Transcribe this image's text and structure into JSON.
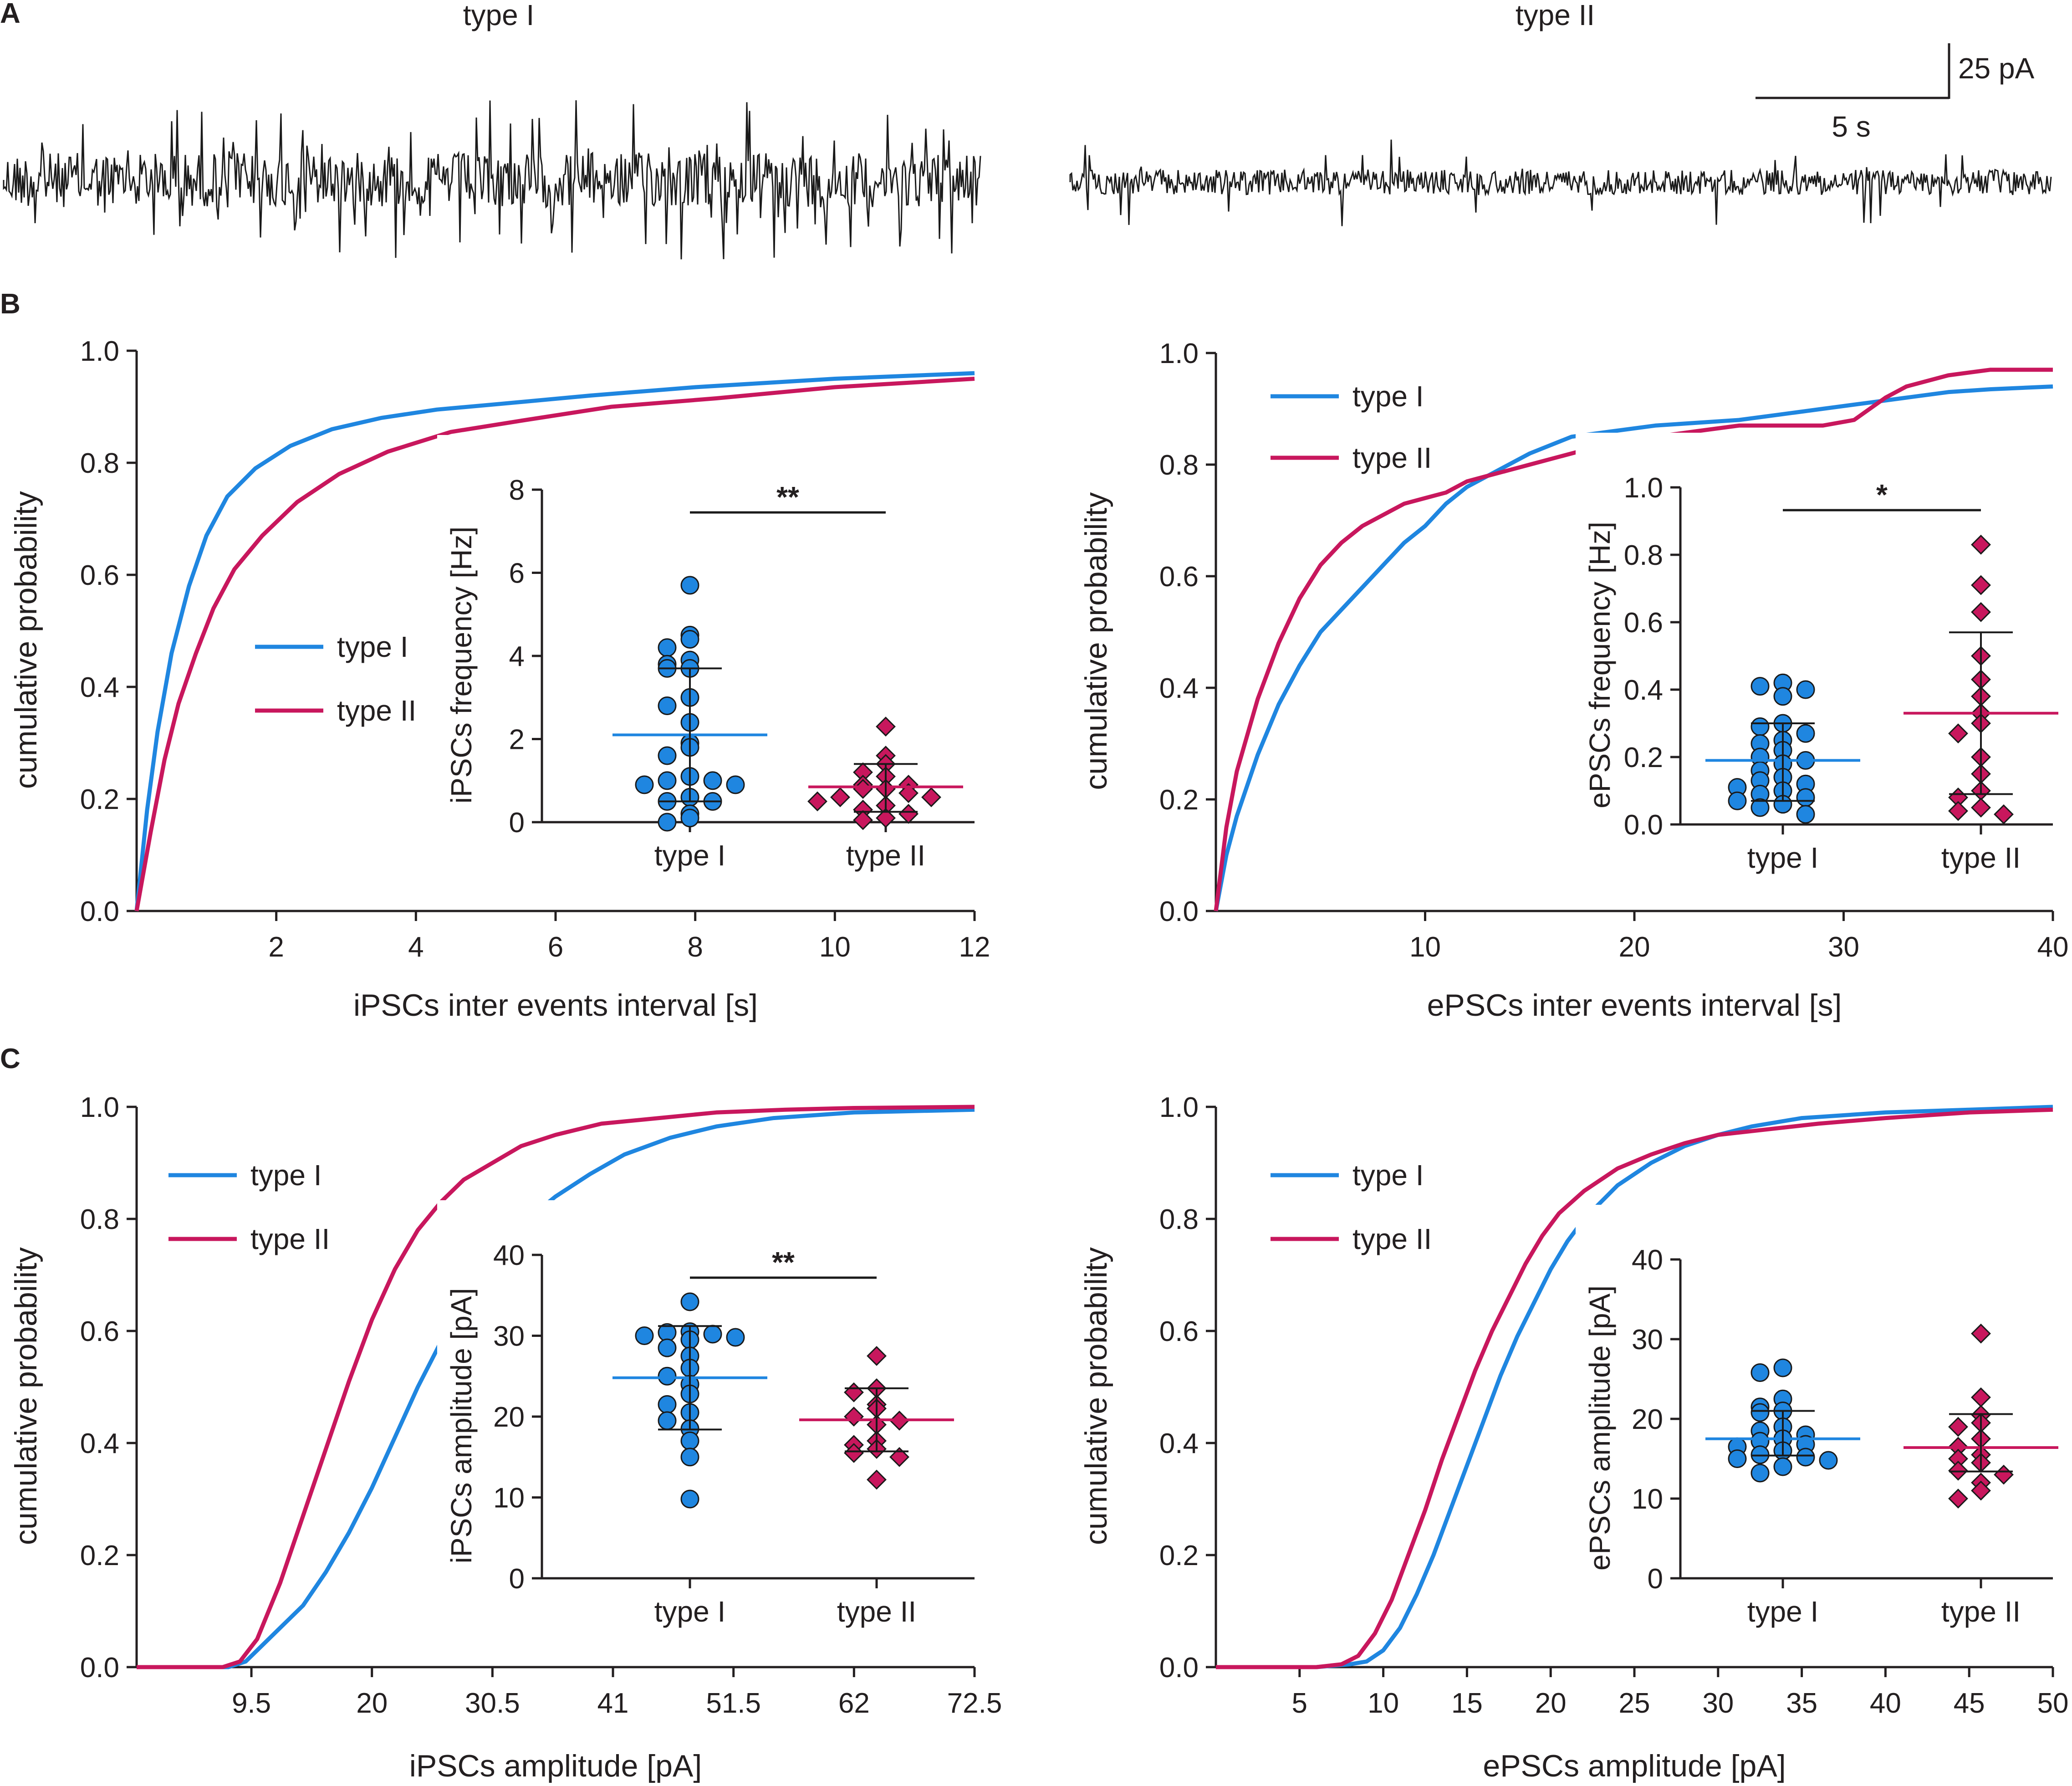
{
  "colors": {
    "type_I": "#1f86e0",
    "type_II": "#c8175d",
    "axis": "#231f20",
    "trace": "#1a1a1a"
  },
  "figure": {
    "panel_labels": [
      "A",
      "B",
      "C"
    ]
  },
  "traces": {
    "type_I_label": "type I",
    "type_II_label": "type II",
    "scale_current": "25 pA",
    "scale_time": "5 s"
  },
  "chart_data": [
    {
      "id": "B-left",
      "type": "line",
      "title": "",
      "xlabel": "iPSCs inter events interval [s]",
      "ylabel": "cumulative probability",
      "xlim": [
        0,
        12
      ],
      "ylim": [
        0,
        1
      ],
      "xticks": [
        2,
        4,
        6,
        8,
        10,
        12
      ],
      "xtick_labels": [
        "2",
        "4",
        "6",
        "8",
        "10",
        "12"
      ],
      "yticks": [
        0,
        0.2,
        0.4,
        0.6,
        0.8,
        1.0
      ],
      "ytick_labels": [
        "0.0",
        "0.2",
        "0.4",
        "0.6",
        "0.8",
        "1.0"
      ],
      "legend": [
        "type I",
        "type II"
      ],
      "series": [
        {
          "name": "type I",
          "x": [
            0,
            0.15,
            0.3,
            0.5,
            0.75,
            1.0,
            1.3,
            1.7,
            2.2,
            2.8,
            3.5,
            4.3,
            5.2,
            6.5,
            8,
            10,
            12
          ],
          "y": [
            0,
            0.18,
            0.32,
            0.46,
            0.58,
            0.67,
            0.74,
            0.79,
            0.83,
            0.86,
            0.88,
            0.895,
            0.905,
            0.92,
            0.935,
            0.95,
            0.96
          ]
        },
        {
          "name": "type II",
          "x": [
            0,
            0.2,
            0.4,
            0.6,
            0.85,
            1.1,
            1.4,
            1.8,
            2.3,
            2.9,
            3.6,
            4.5,
            5.5,
            6.8,
            8.3,
            10,
            12
          ],
          "y": [
            0,
            0.14,
            0.27,
            0.37,
            0.46,
            0.54,
            0.61,
            0.67,
            0.73,
            0.78,
            0.82,
            0.855,
            0.875,
            0.9,
            0.915,
            0.935,
            0.95
          ]
        }
      ],
      "inset": {
        "ylabel": "iPSCs frequency [Hz]",
        "ylim": [
          0,
          8
        ],
        "yticks": [
          0,
          2,
          4,
          6,
          8
        ],
        "ytick_labels": [
          "0",
          "2",
          "4",
          "6",
          "8"
        ],
        "categories": [
          "type I",
          "type II"
        ],
        "significance": "**",
        "groups": [
          {
            "name": "type I",
            "mean": 2.1,
            "sd_low": 0.5,
            "sd_high": 3.7,
            "points": [
              5.7,
              4.5,
              4.4,
              4.2,
              3.9,
              3.8,
              3.7,
              3.7,
              3.0,
              2.8,
              2.4,
              1.9,
              1.8,
              1.6,
              1.1,
              1.0,
              1.0,
              0.9,
              0.9,
              0.6,
              0.5,
              0.5,
              0.2,
              0.1,
              0.0
            ]
          },
          {
            "name": "type II",
            "mean": 0.85,
            "sd_low": 0.25,
            "sd_high": 1.4,
            "points": [
              2.3,
              1.6,
              1.4,
              1.2,
              1.1,
              0.9,
              0.9,
              0.8,
              0.8,
              0.7,
              0.6,
              0.6,
              0.5,
              0.4,
              0.3,
              0.2,
              0.1,
              0.05
            ]
          }
        ]
      }
    },
    {
      "id": "B-right",
      "type": "line",
      "xlabel": "ePSCs inter events interval [s]",
      "ylabel": "cumulative probability",
      "xlim": [
        0,
        40
      ],
      "ylim": [
        0,
        1
      ],
      "xticks": [
        10,
        20,
        30,
        40
      ],
      "xtick_labels": [
        "10",
        "20",
        "30",
        "40"
      ],
      "yticks": [
        0,
        0.2,
        0.4,
        0.6,
        0.8,
        1.0
      ],
      "ytick_labels": [
        "0.0",
        "0.2",
        "0.4",
        "0.6",
        "0.8",
        "1.0"
      ],
      "legend": [
        "type I",
        "type II"
      ],
      "series": [
        {
          "name": "type I",
          "x": [
            0,
            0.5,
            1,
            2,
            3,
            4,
            5,
            6,
            7,
            8,
            9,
            10,
            11,
            12,
            13,
            14,
            15,
            17,
            19,
            21,
            23,
            25,
            27,
            29,
            31,
            33,
            35,
            37,
            40
          ],
          "y": [
            0,
            0.1,
            0.17,
            0.28,
            0.37,
            0.44,
            0.5,
            0.54,
            0.58,
            0.62,
            0.66,
            0.69,
            0.73,
            0.76,
            0.78,
            0.8,
            0.82,
            0.85,
            0.86,
            0.87,
            0.875,
            0.88,
            0.89,
            0.9,
            0.91,
            0.92,
            0.93,
            0.935,
            0.94
          ]
        },
        {
          "name": "type II",
          "x": [
            0,
            0.5,
            1,
            2,
            3,
            4,
            5,
            6,
            7,
            8,
            9,
            10,
            11,
            12,
            13,
            14,
            15,
            17,
            19,
            21,
            23,
            25,
            27,
            29,
            30.5,
            32,
            33,
            35,
            37,
            40
          ],
          "y": [
            0,
            0.15,
            0.25,
            0.38,
            0.48,
            0.56,
            0.62,
            0.66,
            0.69,
            0.71,
            0.73,
            0.74,
            0.75,
            0.77,
            0.78,
            0.79,
            0.8,
            0.82,
            0.84,
            0.85,
            0.86,
            0.87,
            0.87,
            0.87,
            0.88,
            0.92,
            0.94,
            0.96,
            0.97,
            0.97
          ]
        }
      ],
      "inset": {
        "ylabel": "ePSCs frequency [Hz]",
        "ylim": [
          0,
          1
        ],
        "yticks": [
          0,
          0.2,
          0.4,
          0.6,
          0.8,
          1.0
        ],
        "ytick_labels": [
          "0.0",
          "0.2",
          "0.4",
          "0.6",
          "0.8",
          "1.0"
        ],
        "categories": [
          "type I",
          "type II"
        ],
        "significance": "*",
        "groups": [
          {
            "name": "type I",
            "mean": 0.19,
            "sd_low": 0.07,
            "sd_high": 0.3,
            "points": [
              0.42,
              0.41,
              0.4,
              0.38,
              0.3,
              0.29,
              0.27,
              0.25,
              0.24,
              0.22,
              0.2,
              0.19,
              0.18,
              0.16,
              0.14,
              0.13,
              0.12,
              0.11,
              0.1,
              0.09,
              0.08,
              0.07,
              0.06,
              0.05,
              0.03
            ]
          },
          {
            "name": "type II",
            "mean": 0.33,
            "sd_low": 0.09,
            "sd_high": 0.57,
            "points": [
              0.83,
              0.71,
              0.63,
              0.5,
              0.43,
              0.38,
              0.33,
              0.3,
              0.27,
              0.2,
              0.15,
              0.1,
              0.08,
              0.05,
              0.04,
              0.03
            ]
          }
        ]
      }
    },
    {
      "id": "C-left",
      "type": "line",
      "xlabel": "iPSCs amplitude [pA]",
      "ylabel": "cumulative probability",
      "xlim": [
        -0.5,
        72.5
      ],
      "ylim": [
        0,
        1
      ],
      "xticks": [
        9.5,
        20,
        30.5,
        41,
        51.5,
        62,
        72.5
      ],
      "xtick_labels": [
        "9.5",
        "20",
        "30.5",
        "41",
        "51.5",
        "62",
        "72.5"
      ],
      "yticks": [
        0,
        0.2,
        0.4,
        0.6,
        0.8,
        1.0
      ],
      "ytick_labels": [
        "0.0",
        "0.2",
        "0.4",
        "0.6",
        "0.8",
        "1.0"
      ],
      "legend": [
        "type I",
        "type II"
      ],
      "series": [
        {
          "name": "type I",
          "x": [
            -0.5,
            4,
            7.5,
            9,
            10,
            12,
            14,
            16,
            18,
            20,
            22,
            24,
            26,
            28,
            30.5,
            33,
            36,
            39,
            42,
            46,
            50,
            55,
            62,
            72.5
          ],
          "y": [
            0,
            0,
            0,
            0.01,
            0.03,
            0.07,
            0.11,
            0.17,
            0.24,
            0.32,
            0.41,
            0.5,
            0.58,
            0.66,
            0.73,
            0.79,
            0.84,
            0.88,
            0.915,
            0.945,
            0.965,
            0.98,
            0.99,
            0.995
          ]
        },
        {
          "name": "type II",
          "x": [
            -0.5,
            4,
            7,
            8.5,
            10,
            12,
            14,
            16,
            18,
            20,
            22,
            24,
            26,
            28,
            30.5,
            33,
            36,
            40,
            45,
            50,
            56,
            62,
            72.5
          ],
          "y": [
            0,
            0,
            0,
            0.01,
            0.05,
            0.15,
            0.27,
            0.39,
            0.51,
            0.62,
            0.71,
            0.78,
            0.83,
            0.87,
            0.9,
            0.93,
            0.95,
            0.97,
            0.98,
            0.99,
            0.995,
            0.998,
            1.0
          ]
        }
      ],
      "inset": {
        "ylabel": "iPSCs amplitude [pA]",
        "ylim": [
          0,
          40
        ],
        "yticks": [
          0,
          10,
          20,
          30,
          40
        ],
        "ytick_labels": [
          "0",
          "10",
          "20",
          "30",
          "40"
        ],
        "categories": [
          "type I",
          "type II"
        ],
        "significance": "**",
        "groups": [
          {
            "name": "type I",
            "mean": 24.8,
            "sd_low": 18.4,
            "sd_high": 31.2,
            "points": [
              34.2,
              30.5,
              30.4,
              30.2,
              30.0,
              29.8,
              29.5,
              28.5,
              27.5,
              26.0,
              25.0,
              24.0,
              22.8,
              21.5,
              20.5,
              19.5,
              18.5,
              17.0,
              15.0,
              9.8
            ]
          },
          {
            "name": "type II",
            "mean": 19.6,
            "sd_low": 15.7,
            "sd_high": 23.5,
            "points": [
              27.5,
              23.5,
              23.0,
              21.5,
              21.0,
              20.0,
              19.5,
              19.0,
              17.0,
              16.5,
              16.0,
              15.5,
              15.0,
              12.2
            ]
          }
        ]
      }
    },
    {
      "id": "C-right",
      "type": "line",
      "xlabel": "ePSCs amplitude [pA]",
      "ylabel": "cumulative probability",
      "xlim": [
        0,
        50
      ],
      "ylim": [
        0,
        1
      ],
      "xticks": [
        5,
        10,
        15,
        20,
        25,
        30,
        35,
        40,
        45,
        50
      ],
      "xtick_labels": [
        "5",
        "10",
        "15",
        "20",
        "25",
        "30",
        "35",
        "40",
        "45",
        "50"
      ],
      "yticks": [
        0,
        0.2,
        0.4,
        0.6,
        0.8,
        1.0
      ],
      "ytick_labels": [
        "0.0",
        "0.2",
        "0.4",
        "0.6",
        "0.8",
        "1.0"
      ],
      "legend": [
        "type I",
        "type II"
      ],
      "series": [
        {
          "name": "type I",
          "x": [
            0,
            6,
            8,
            9,
            10,
            11,
            12,
            13,
            14,
            15,
            16,
            17,
            18,
            19,
            20,
            21,
            22,
            24,
            26,
            28,
            30,
            32,
            35,
            40,
            45,
            50
          ],
          "y": [
            0,
            0,
            0.005,
            0.01,
            0.03,
            0.07,
            0.13,
            0.2,
            0.28,
            0.36,
            0.44,
            0.52,
            0.59,
            0.65,
            0.71,
            0.76,
            0.8,
            0.86,
            0.9,
            0.93,
            0.95,
            0.965,
            0.98,
            0.99,
            0.995,
            1.0
          ]
        },
        {
          "name": "type II",
          "x": [
            0,
            6,
            7.5,
            8.5,
            9.5,
            10.5,
            11.5,
            12.5,
            13.5,
            14.5,
            15.5,
            16.5,
            17.5,
            18.5,
            19.5,
            20.5,
            22,
            24,
            26,
            28,
            30,
            33,
            36,
            40,
            45,
            50
          ],
          "y": [
            0,
            0,
            0.005,
            0.02,
            0.06,
            0.12,
            0.2,
            0.28,
            0.37,
            0.45,
            0.53,
            0.6,
            0.66,
            0.72,
            0.77,
            0.81,
            0.85,
            0.89,
            0.915,
            0.935,
            0.95,
            0.96,
            0.97,
            0.98,
            0.99,
            0.995
          ]
        }
      ],
      "inset": {
        "ylabel": "ePSCs amplitude [pA]",
        "ylim": [
          0,
          40
        ],
        "yticks": [
          0,
          10,
          20,
          30,
          40
        ],
        "ytick_labels": [
          "0",
          "10",
          "20",
          "30",
          "40"
        ],
        "categories": [
          "type I",
          "type II"
        ],
        "significance": "",
        "groups": [
          {
            "name": "type I",
            "mean": 17.5,
            "sd_low": 15.4,
            "sd_high": 21.0,
            "points": [
              26.4,
              25.8,
              22.5,
              21.5,
              21.0,
              20.8,
              19.0,
              18.5,
              18.0,
              17.5,
              17.2,
              16.8,
              16.5,
              16.0,
              15.5,
              15.2,
              15.0,
              14.8,
              14.0,
              13.2
            ]
          },
          {
            "name": "type II",
            "mean": 16.4,
            "sd_low": 13.4,
            "sd_high": 20.6,
            "points": [
              30.7,
              22.7,
              20.5,
              19.5,
              19.0,
              17.5,
              16.5,
              15.5,
              15.0,
              14.5,
              13.5,
              13.0,
              12.0,
              11.0,
              10.0
            ]
          }
        ]
      }
    }
  ]
}
